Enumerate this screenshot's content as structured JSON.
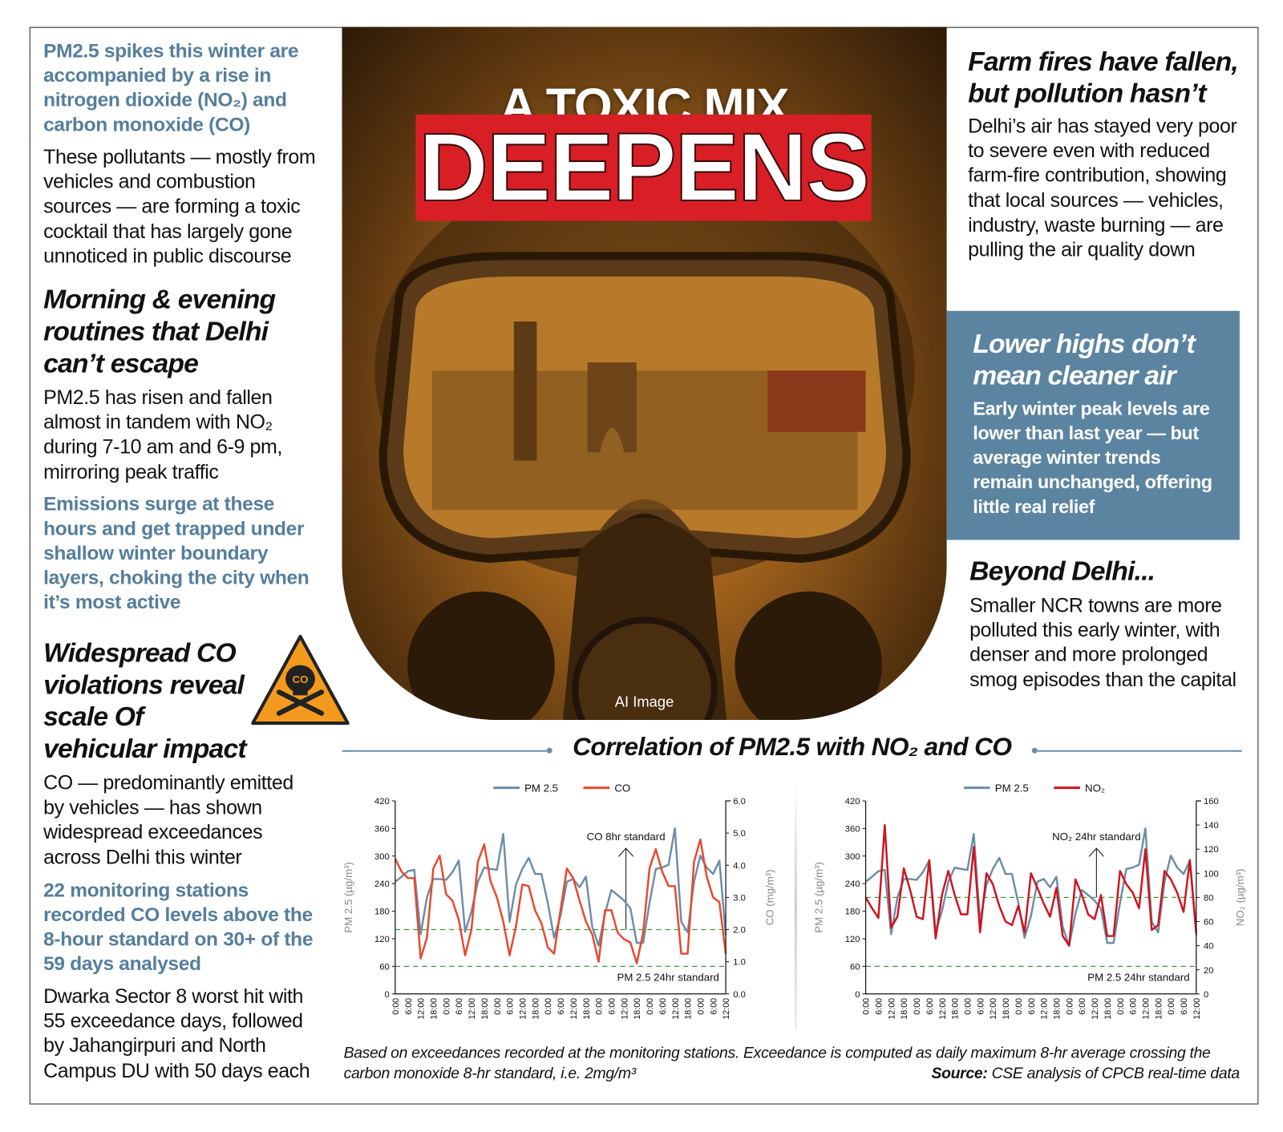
{
  "title": {
    "line1": "A TOXIC MIX",
    "line2": "DEEPENS",
    "image_caption": "AI Image"
  },
  "colors": {
    "accent_blue": "#5b84a0",
    "red": "#d91f26",
    "pm25": "#6b8ea6",
    "co": "#e8472e",
    "no2": "#d0121f",
    "standard": "#3a9a3a"
  },
  "left": {
    "intro_highlight": "PM2.5 spikes this winter are accompanied by a rise in nitrogen dioxide (NO₂) and carbon monoxide (CO)",
    "intro_body": "These pollutants — mostly from vehicles and combustion sources — are forming a toxic cocktail that has largely gone unnoticed in public discourse",
    "routine_heading": "Morning & evening routines that Delhi can’t escape",
    "routine_body": "PM2.5 has risen and fallen almost in tandem with NO₂ during 7-10 am and 6-9 pm, mirroring peak traffic",
    "routine_highlight": "Emissions surge at these hours and get trapped under shallow winter boundary layers, choking the city when it’s most active",
    "co_heading": "Widespread CO violations reveal scale Of vehicular impact",
    "warning_icon_label": "CO",
    "co_body": "CO — predominantly emitted by vehicles — has shown widespread exceedances across Delhi this winter",
    "co_highlight": "22 monitoring stations recorded CO levels above the 8-hour standard on 30+ of the 59 days analysed",
    "co_body2": "Dwarka Sector 8 worst hit with 55 exceedance days, followed by Jahangirpuri and North Campus DU with 50 days each"
  },
  "right": {
    "farm_heading": "Farm fires have fallen, but pollution hasn’t",
    "farm_body": "Delhi’s air has stayed very poor to severe even with reduced farm-fire contribution, showing that local sources — vehicles, industry, waste burning — are pulling the air quality down",
    "box_heading": "Lower highs don’t mean cleaner air",
    "box_body": "Early winter peak levels are lower than last year — but average winter trends remain unchanged, offering little real relief",
    "beyond_heading": "Beyond Delhi...",
    "beyond_body": "Smaller NCR towns are more polluted this early winter, with denser and more prolonged smog episodes than the capital"
  },
  "section_title": "Correlation of PM2.5 with NO₂ and CO",
  "footnote": {
    "text": "Based on exceedances recorded at the monitoring stations. Exceedance is computed as daily maximum 8-hr average crossing the carbon monoxide 8-hr standard, i.e. 2mg/m³",
    "source_label": "Source:",
    "source_text": " CSE analysis of CPCB real-time data"
  },
  "chart_data": [
    {
      "type": "line",
      "x_tick_labels": [
        "0:00",
        "6:00",
        "12:00",
        "18:00",
        "0:00",
        "6:00",
        "12:00",
        "18:00",
        "0:00",
        "6:00",
        "12:00",
        "18:00",
        "0:00",
        "6:00",
        "12:00",
        "18:00",
        "0:00",
        "6:00",
        "12:00",
        "18:00",
        "0:00",
        "6:00",
        "12:00",
        "18:00",
        "0:00",
        "6:00",
        "12:00"
      ],
      "ylabel": "PM 2.5 (µg/m³)",
      "ylim": [
        0,
        420
      ],
      "yticks": [
        0,
        60,
        120,
        180,
        240,
        300,
        360,
        420
      ],
      "y2label": "CO (mg/m³)",
      "y2lim": [
        0,
        6
      ],
      "y2ticks": [
        "0.0",
        "1.0",
        "2.0",
        "3.0",
        "4.0",
        "5.0",
        "6.0"
      ],
      "legend": "top-center",
      "grid": false,
      "series": [
        {
          "name": "PM 2.5",
          "axis": "left",
          "color": "#6b8ea6",
          "values": [
            244,
            255,
            267,
            270,
            130,
            210,
            250,
            250,
            248,
            265,
            290,
            135,
            180,
            244,
            275,
            272,
            270,
            348,
            157,
            238,
            272,
            296,
            261,
            261,
            198,
            122,
            170,
            244,
            250,
            232,
            255,
            146,
            105,
            175,
            226,
            215,
            203,
            186,
            111,
            111,
            198,
            272,
            275,
            281,
            360,
            157,
            134,
            244,
            301,
            275,
            261,
            290,
            128
          ]
        },
        {
          "name": "CO",
          "axis": "right",
          "color": "#e8472e",
          "values": [
            4.2,
            3.8,
            3.6,
            3.6,
            1.1,
            1.75,
            3.9,
            4.3,
            3.1,
            2.9,
            2.3,
            1.2,
            2.0,
            4.1,
            4.65,
            3.5,
            3.0,
            2.25,
            1.2,
            2.1,
            3.4,
            3.35,
            2.6,
            2.2,
            1.45,
            1.25,
            2.6,
            3.9,
            3.6,
            2.9,
            2.25,
            1.85,
            1.0,
            2.6,
            2.6,
            1.9,
            1.7,
            1.6,
            0.95,
            1.9,
            3.9,
            4.5,
            3.8,
            3.35,
            3.35,
            1.25,
            1.25,
            4.1,
            4.8,
            3.65,
            3.0,
            2.85,
            1.25
          ]
        }
      ],
      "reference_lines": [
        {
          "label": "CO 8hr standard",
          "axis": "right",
          "value": 2.0
        },
        {
          "label": "PM 2.5 24hr standard",
          "axis": "left",
          "value": 60
        }
      ]
    },
    {
      "type": "line",
      "x_tick_labels": [
        "0:00",
        "6:00",
        "12:00",
        "18:00",
        "0:00",
        "6:00",
        "12:00",
        "18:00",
        "0:00",
        "6:00",
        "12:00",
        "18:00",
        "0:00",
        "6:00",
        "12:00",
        "18:00",
        "0:00",
        "6:00",
        "12:00",
        "18:00",
        "0:00",
        "6:00",
        "12:00",
        "18:00",
        "0:00",
        "6:00",
        "12:00"
      ],
      "ylabel": "PM 2.5 (µg/m³)",
      "ylim": [
        0,
        420
      ],
      "yticks": [
        0,
        60,
        120,
        180,
        240,
        300,
        360,
        420
      ],
      "y2label": "NO₂ (µg/m³)",
      "y2lim": [
        0,
        160
      ],
      "y2ticks": [
        "0",
        "20",
        "40",
        "60",
        "80",
        "100",
        "120",
        "140",
        "160"
      ],
      "legend": "top-center",
      "grid": false,
      "series": [
        {
          "name": "PM 2.5",
          "axis": "left",
          "color": "#6b8ea6",
          "values": [
            244,
            255,
            267,
            270,
            130,
            210,
            250,
            250,
            248,
            265,
            290,
            135,
            180,
            244,
            275,
            272,
            270,
            348,
            157,
            238,
            272,
            296,
            261,
            261,
            198,
            122,
            170,
            244,
            250,
            232,
            255,
            146,
            105,
            175,
            226,
            215,
            203,
            186,
            111,
            111,
            198,
            272,
            275,
            281,
            360,
            157,
            134,
            244,
            301,
            275,
            261,
            290,
            128
          ]
        },
        {
          "name": "NO₂",
          "axis": "right",
          "color": "#d0121f",
          "values": [
            80,
            71,
            63,
            140,
            55,
            64,
            104,
            86,
            64,
            62,
            111,
            46,
            82,
            102,
            82,
            66,
            66,
            122,
            51,
            100,
            91,
            73,
            60,
            57,
            73,
            51,
            100,
            88,
            75,
            64,
            88,
            48,
            40,
            95,
            82,
            66,
            62,
            82,
            48,
            48,
            102,
            91,
            84,
            71,
            120,
            53,
            57,
            102,
            95,
            84,
            68,
            111,
            51
          ]
        }
      ],
      "reference_lines": [
        {
          "label": "NO₂ 24hr standard",
          "axis": "right",
          "value": 80
        },
        {
          "label": "PM 2.5 24hr standard",
          "axis": "left",
          "value": 60
        }
      ]
    }
  ]
}
